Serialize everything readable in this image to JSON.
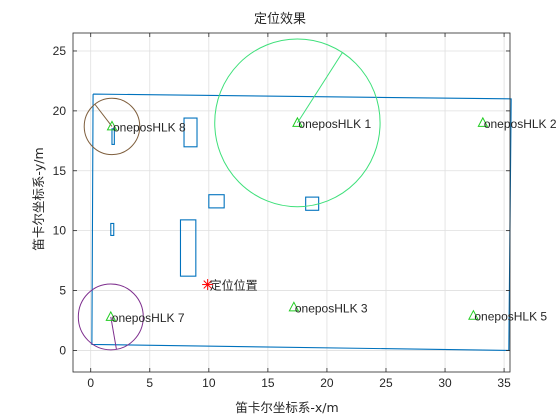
{
  "chart_data": {
    "type": "scatter",
    "title": "定位效果",
    "xlabel": "笛卡尔坐标系-x/m",
    "ylabel": "笛卡尔坐标系-y/m",
    "xlim": [
      -1.5,
      35.5
    ],
    "ylim": [
      -1.8,
      26.5
    ],
    "xticks": [
      0,
      5,
      10,
      15,
      20,
      25,
      30,
      35
    ],
    "yticks": [
      0,
      5,
      10,
      15,
      20,
      25
    ],
    "grid": true,
    "anchors": [
      {
        "label": "oneposHLK 1",
        "x": 17.5,
        "y": 19.0
      },
      {
        "label": "oneposHLK 2",
        "x": 33.2,
        "y": 19.0
      },
      {
        "label": "oneposHLK 3",
        "x": 17.2,
        "y": 3.6
      },
      {
        "label": "oneposHLK 5",
        "x": 32.4,
        "y": 2.9
      },
      {
        "label": "oneposHLK 7",
        "x": 1.7,
        "y": 2.8
      },
      {
        "label": "oneposHLK 8",
        "x": 1.8,
        "y": 18.7
      }
    ],
    "range_circles": [
      {
        "anchor": "oneposHLK 1",
        "cx": 17.5,
        "cy": 19.0,
        "r": 7.0,
        "color": "#3ee07a",
        "angle_deg": 57
      },
      {
        "anchor": "oneposHLK 8",
        "cx": 1.8,
        "cy": 18.7,
        "r": 2.35,
        "color": "#7e5e3c",
        "angle_deg": 128
      },
      {
        "anchor": "oneposHLK 7",
        "cx": 1.7,
        "cy": 2.8,
        "r": 2.75,
        "color": "#7e2f8e",
        "angle_deg": -80
      }
    ],
    "estimate": {
      "label": "定位位置",
      "x": 9.9,
      "y": 5.5,
      "color": "#ff0000"
    },
    "room_outline": [
      [
        0.2,
        21.4
      ],
      [
        35.6,
        21.0
      ],
      [
        35.4,
        0.0
      ],
      [
        0.1,
        0.5
      ],
      [
        0.2,
        21.4
      ]
    ],
    "obstacles": [
      {
        "x": 7.9,
        "y": 17.0,
        "w": 1.1,
        "h": 2.4
      },
      {
        "x": 1.8,
        "y": 17.2,
        "w": 0.2,
        "h": 1.3
      },
      {
        "x": 10.0,
        "y": 11.9,
        "w": 1.3,
        "h": 1.1
      },
      {
        "x": 18.2,
        "y": 11.7,
        "w": 1.1,
        "h": 1.1
      },
      {
        "x": 1.7,
        "y": 9.6,
        "w": 0.25,
        "h": 1.0
      },
      {
        "x": 7.6,
        "y": 6.2,
        "w": 1.3,
        "h": 4.7
      }
    ],
    "colors": {
      "line": "#0072bd",
      "grid": "#dfdfdf",
      "axis": "#262626",
      "marker": "#22cc22"
    }
  }
}
